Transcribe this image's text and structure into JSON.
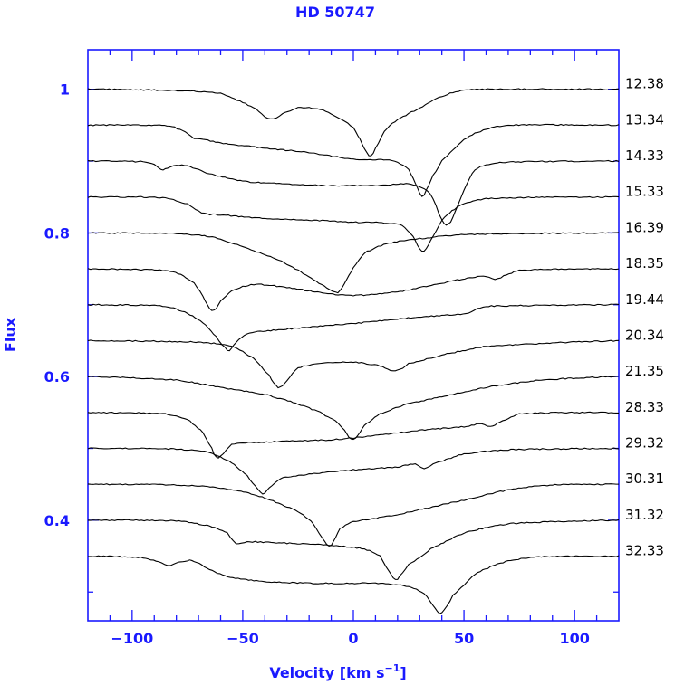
{
  "chart_data": {
    "type": "line",
    "title": "HD 50747",
    "xlabel": "Velocity [km s",
    "xlabel_sup": "−1",
    "xlabel_close": "]",
    "ylabel": "Flux",
    "xlim": [
      -120,
      120
    ],
    "ylim": [
      0.26,
      1.055
    ],
    "x_ticks": [
      -100,
      -50,
      0,
      50,
      100
    ],
    "x_tick_labels": [
      "−100",
      "−50",
      "0",
      "50",
      "100"
    ],
    "y_ticks": [
      0.4,
      0.6,
      0.8,
      1.0
    ],
    "y_tick_labels": [
      "0.4",
      "0.6",
      "0.8",
      "1"
    ],
    "grid": false,
    "colors": {
      "axis": "#1a1aff",
      "line": "#000000"
    },
    "series": [
      {
        "name": "12.38",
        "continuum": 1.0,
        "profile": [
          [
            -120,
            1.0
          ],
          [
            -90,
            0.999
          ],
          [
            -70,
            0.997
          ],
          [
            -60,
            0.994
          ],
          [
            -50,
            0.982
          ],
          [
            -44,
            0.972
          ],
          [
            -40,
            0.962
          ],
          [
            -36,
            0.959
          ],
          [
            -32,
            0.966
          ],
          [
            -25,
            0.974
          ],
          [
            -15,
            0.972
          ],
          [
            -5,
            0.958
          ],
          [
            0,
            0.946
          ],
          [
            3,
            0.93
          ],
          [
            6,
            0.912
          ],
          [
            8,
            0.908
          ],
          [
            10,
            0.918
          ],
          [
            14,
            0.942
          ],
          [
            20,
            0.958
          ],
          [
            30,
            0.974
          ],
          [
            40,
            0.99
          ],
          [
            50,
            0.999
          ],
          [
            70,
            1.0
          ],
          [
            120,
            1.0
          ]
        ]
      },
      {
        "name": "13.34",
        "continuum": 0.95,
        "profile": [
          [
            -120,
            0.95
          ],
          [
            -90,
            0.95
          ],
          [
            -82,
            0.948
          ],
          [
            -76,
            0.94
          ],
          [
            -72,
            0.932
          ],
          [
            -68,
            0.93
          ],
          [
            -60,
            0.925
          ],
          [
            -40,
            0.918
          ],
          [
            -20,
            0.912
          ],
          [
            -5,
            0.905
          ],
          [
            5,
            0.902
          ],
          [
            15,
            0.902
          ],
          [
            20,
            0.898
          ],
          [
            25,
            0.888
          ],
          [
            28,
            0.87
          ],
          [
            31,
            0.851
          ],
          [
            33,
            0.86
          ],
          [
            36,
            0.88
          ],
          [
            40,
            0.9
          ],
          [
            50,
            0.93
          ],
          [
            60,
            0.944
          ],
          [
            70,
            0.95
          ],
          [
            120,
            0.95
          ]
        ]
      },
      {
        "name": "14.33",
        "continuum": 0.9,
        "profile": [
          [
            -120,
            0.9
          ],
          [
            -95,
            0.899
          ],
          [
            -90,
            0.895
          ],
          [
            -87,
            0.888
          ],
          [
            -84,
            0.89
          ],
          [
            -80,
            0.894
          ],
          [
            -75,
            0.893
          ],
          [
            -65,
            0.882
          ],
          [
            -50,
            0.872
          ],
          [
            -30,
            0.868
          ],
          [
            -10,
            0.866
          ],
          [
            10,
            0.866
          ],
          [
            25,
            0.868
          ],
          [
            32,
            0.862
          ],
          [
            36,
            0.848
          ],
          [
            40,
            0.818
          ],
          [
            43,
            0.812
          ],
          [
            46,
            0.83
          ],
          [
            50,
            0.86
          ],
          [
            55,
            0.888
          ],
          [
            65,
            0.898
          ],
          [
            120,
            0.9
          ]
        ]
      },
      {
        "name": "15.33",
        "continuum": 0.85,
        "profile": [
          [
            -120,
            0.85
          ],
          [
            -85,
            0.849
          ],
          [
            -75,
            0.84
          ],
          [
            -70,
            0.83
          ],
          [
            -66,
            0.826
          ],
          [
            -60,
            0.825
          ],
          [
            -40,
            0.82
          ],
          [
            -20,
            0.818
          ],
          [
            0,
            0.815
          ],
          [
            15,
            0.814
          ],
          [
            22,
            0.81
          ],
          [
            27,
            0.795
          ],
          [
            30,
            0.778
          ],
          [
            32,
            0.775
          ],
          [
            35,
            0.79
          ],
          [
            40,
            0.818
          ],
          [
            48,
            0.838
          ],
          [
            60,
            0.848
          ],
          [
            120,
            0.85
          ]
        ]
      },
      {
        "name": "16.39",
        "continuum": 0.8,
        "profile": [
          [
            -120,
            0.8
          ],
          [
            -80,
            0.799
          ],
          [
            -65,
            0.795
          ],
          [
            -55,
            0.786
          ],
          [
            -45,
            0.775
          ],
          [
            -35,
            0.764
          ],
          [
            -25,
            0.748
          ],
          [
            -18,
            0.735
          ],
          [
            -12,
            0.724
          ],
          [
            -8,
            0.717
          ],
          [
            -6,
            0.72
          ],
          [
            -3,
            0.735
          ],
          [
            0,
            0.752
          ],
          [
            5,
            0.772
          ],
          [
            15,
            0.785
          ],
          [
            30,
            0.792
          ],
          [
            50,
            0.798
          ],
          [
            120,
            0.8
          ]
        ]
      },
      {
        "name": "18.35",
        "continuum": 0.75,
        "profile": [
          [
            -120,
            0.75
          ],
          [
            -85,
            0.748
          ],
          [
            -78,
            0.742
          ],
          [
            -72,
            0.73
          ],
          [
            -68,
            0.712
          ],
          [
            -65,
            0.695
          ],
          [
            -63,
            0.692
          ],
          [
            -60,
            0.705
          ],
          [
            -55,
            0.72
          ],
          [
            -45,
            0.728
          ],
          [
            -30,
            0.724
          ],
          [
            -15,
            0.717
          ],
          [
            0,
            0.713
          ],
          [
            20,
            0.718
          ],
          [
            40,
            0.73
          ],
          [
            55,
            0.738
          ],
          [
            60,
            0.74
          ],
          [
            64,
            0.735
          ],
          [
            68,
            0.74
          ],
          [
            75,
            0.748
          ],
          [
            120,
            0.75
          ]
        ]
      },
      {
        "name": "19.44",
        "continuum": 0.7,
        "profile": [
          [
            -120,
            0.7
          ],
          [
            -85,
            0.698
          ],
          [
            -75,
            0.688
          ],
          [
            -68,
            0.675
          ],
          [
            -62,
            0.655
          ],
          [
            -58,
            0.64
          ],
          [
            -56,
            0.636
          ],
          [
            -53,
            0.648
          ],
          [
            -48,
            0.66
          ],
          [
            -35,
            0.665
          ],
          [
            -15,
            0.67
          ],
          [
            0,
            0.674
          ],
          [
            20,
            0.68
          ],
          [
            40,
            0.685
          ],
          [
            52,
            0.688
          ],
          [
            56,
            0.694
          ],
          [
            60,
            0.698
          ],
          [
            120,
            0.7
          ]
        ]
      },
      {
        "name": "20.34",
        "continuum": 0.65,
        "profile": [
          [
            -120,
            0.65
          ],
          [
            -70,
            0.648
          ],
          [
            -55,
            0.642
          ],
          [
            -45,
            0.625
          ],
          [
            -38,
            0.602
          ],
          [
            -35,
            0.588
          ],
          [
            -33,
            0.585
          ],
          [
            -30,
            0.595
          ],
          [
            -25,
            0.612
          ],
          [
            -15,
            0.618
          ],
          [
            0,
            0.62
          ],
          [
            12,
            0.615
          ],
          [
            18,
            0.608
          ],
          [
            21,
            0.61
          ],
          [
            25,
            0.618
          ],
          [
            40,
            0.63
          ],
          [
            60,
            0.642
          ],
          [
            120,
            0.65
          ]
        ]
      },
      {
        "name": "21.35",
        "continuum": 0.6,
        "profile": [
          [
            -120,
            0.6
          ],
          [
            -80,
            0.595
          ],
          [
            -60,
            0.585
          ],
          [
            -40,
            0.575
          ],
          [
            -25,
            0.562
          ],
          [
            -15,
            0.55
          ],
          [
            -8,
            0.538
          ],
          [
            -4,
            0.525
          ],
          [
            -2,
            0.516
          ],
          [
            0,
            0.513
          ],
          [
            2,
            0.518
          ],
          [
            5,
            0.532
          ],
          [
            12,
            0.548
          ],
          [
            25,
            0.562
          ],
          [
            40,
            0.572
          ],
          [
            60,
            0.585
          ],
          [
            85,
            0.595
          ],
          [
            120,
            0.6
          ]
        ]
      },
      {
        "name": "28.33",
        "continuum": 0.55,
        "profile": [
          [
            -120,
            0.55
          ],
          [
            -85,
            0.548
          ],
          [
            -75,
            0.54
          ],
          [
            -68,
            0.522
          ],
          [
            -64,
            0.5
          ],
          [
            -62,
            0.488
          ],
          [
            -60,
            0.49
          ],
          [
            -55,
            0.505
          ],
          [
            -45,
            0.508
          ],
          [
            -30,
            0.51
          ],
          [
            -10,
            0.512
          ],
          [
            10,
            0.518
          ],
          [
            30,
            0.525
          ],
          [
            50,
            0.53
          ],
          [
            58,
            0.534
          ],
          [
            62,
            0.53
          ],
          [
            65,
            0.535
          ],
          [
            75,
            0.548
          ],
          [
            120,
            0.55
          ]
        ]
      },
      {
        "name": "29.32",
        "continuum": 0.5,
        "profile": [
          [
            -120,
            0.5
          ],
          [
            -80,
            0.499
          ],
          [
            -65,
            0.494
          ],
          [
            -55,
            0.48
          ],
          [
            -48,
            0.462
          ],
          [
            -43,
            0.443
          ],
          [
            -41,
            0.437
          ],
          [
            -38,
            0.445
          ],
          [
            -33,
            0.458
          ],
          [
            -20,
            0.464
          ],
          [
            0,
            0.47
          ],
          [
            20,
            0.474
          ],
          [
            28,
            0.478
          ],
          [
            32,
            0.472
          ],
          [
            36,
            0.479
          ],
          [
            50,
            0.492
          ],
          [
            70,
            0.498
          ],
          [
            120,
            0.5
          ]
        ]
      },
      {
        "name": "30.31",
        "continuum": 0.45,
        "profile": [
          [
            -120,
            0.45
          ],
          [
            -80,
            0.449
          ],
          [
            -60,
            0.445
          ],
          [
            -45,
            0.436
          ],
          [
            -35,
            0.425
          ],
          [
            -25,
            0.412
          ],
          [
            -18,
            0.395
          ],
          [
            -14,
            0.375
          ],
          [
            -11,
            0.364
          ],
          [
            -9,
            0.37
          ],
          [
            -6,
            0.388
          ],
          [
            0,
            0.398
          ],
          [
            15,
            0.405
          ],
          [
            30,
            0.415
          ],
          [
            50,
            0.428
          ],
          [
            70,
            0.442
          ],
          [
            90,
            0.449
          ],
          [
            120,
            0.45
          ]
        ]
      },
      {
        "name": "31.32",
        "continuum": 0.4,
        "profile": [
          [
            -120,
            0.4
          ],
          [
            -80,
            0.399
          ],
          [
            -65,
            0.392
          ],
          [
            -57,
            0.382
          ],
          [
            -53,
            0.368
          ],
          [
            -48,
            0.37
          ],
          [
            -30,
            0.368
          ],
          [
            -10,
            0.365
          ],
          [
            5,
            0.36
          ],
          [
            12,
            0.35
          ],
          [
            16,
            0.33
          ],
          [
            19,
            0.318
          ],
          [
            21,
            0.322
          ],
          [
            25,
            0.338
          ],
          [
            35,
            0.36
          ],
          [
            50,
            0.382
          ],
          [
            70,
            0.395
          ],
          [
            120,
            0.4
          ]
        ]
      },
      {
        "name": "32.33",
        "continuum": 0.35,
        "profile": [
          [
            -120,
            0.35
          ],
          [
            -95,
            0.348
          ],
          [
            -88,
            0.342
          ],
          [
            -84,
            0.337
          ],
          [
            -80,
            0.34
          ],
          [
            -75,
            0.344
          ],
          [
            -72,
            0.342
          ],
          [
            -65,
            0.332
          ],
          [
            -58,
            0.322
          ],
          [
            -45,
            0.316
          ],
          [
            -30,
            0.313
          ],
          [
            -10,
            0.312
          ],
          [
            10,
            0.312
          ],
          [
            25,
            0.308
          ],
          [
            32,
            0.298
          ],
          [
            36,
            0.282
          ],
          [
            39,
            0.27
          ],
          [
            41,
            0.275
          ],
          [
            45,
            0.295
          ],
          [
            55,
            0.325
          ],
          [
            70,
            0.343
          ],
          [
            85,
            0.349
          ],
          [
            120,
            0.35
          ]
        ]
      }
    ]
  }
}
